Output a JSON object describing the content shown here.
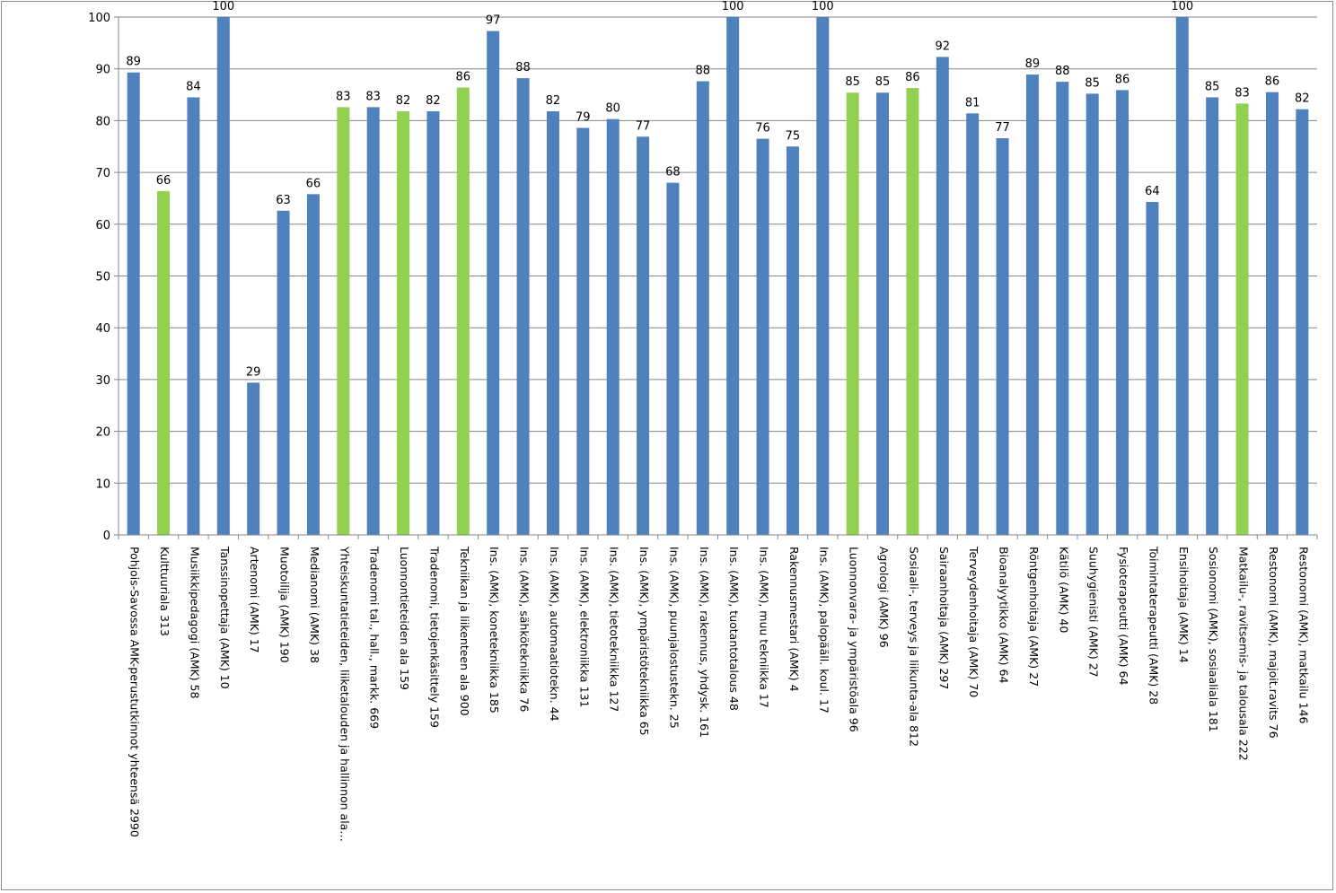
{
  "chart_data": {
    "type": "bar",
    "categories": [
      "Pohjois-Savossa AMK-perustutkinnot yhteensä 2990",
      "Kulttuuriala 313",
      "Musiikkipedagogi (AMK) 58",
      "Tanssinopettaja (AMK) 10",
      "Artenomi (AMK) 17",
      "Muotoilija (AMK) 190",
      "Medianomi (AMK) 38",
      "Yhteiskuntatieteiden, liiketalouden ja hallinnon ala…",
      "Tradenomi tal., hall., markk. 669",
      "Luonnontieteiden ala 159",
      "Tradenomi, tietojenkäsittely 159",
      "Tekniikan ja liikenteen ala 900",
      "Ins. (AMK), konetekniikka 185",
      "Ins. (AMK), sähkötekniikka 76",
      "Ins. (AMK), automaatiotekn. 44",
      "Ins. (AMK), elektroniikka 131",
      "Ins. (AMK), tietotekniikka 127",
      "Ins. (AMK), ympäristötekniikka 65",
      "Ins. (AMK), puunjalostustekn. 25",
      "Ins. (AMK), rakennus, yhdysk. 161",
      "Ins. (AMK), tuotantotalous 48",
      "Ins. (AMK), muu tekniikka 17",
      "Rakennusmestari (AMK) 4",
      "Ins. (AMK), palopääll. koul. 17",
      "Luonnonvara- ja ympäristöala 96",
      "Agrologi (AMK) 96",
      "Sosiaali-, terveys ja liikunta-ala 812",
      "Sairaanhoitaja (AMK) 297",
      "Terveydenhoitaja (AMK) 70",
      "Bioanalyytikko (AMK) 64",
      "Röntgenhoitaja (AMK) 27",
      "Kätilö (AMK) 40",
      "Suuhygienisti (AMK) 27",
      "Fysioterapeutti (AMK) 64",
      "Toimintaterapeutti (AMK) 28",
      "Ensihoitaja (AMK) 14",
      "Sosionomi (AMK), sosiaaliala 181",
      "Matkailu-, ravitsemis- ja talousala 222",
      "Restonomi (AMK), majoit.ravits 76",
      "Restonomi (AMK), matkailu 146"
    ],
    "values": [
      89.3,
      66.4,
      84.5,
      100,
      29.4,
      62.6,
      65.8,
      82.6,
      82.6,
      81.8,
      81.8,
      86.4,
      97.3,
      88.2,
      81.8,
      78.6,
      80.3,
      76.9,
      68.0,
      87.6,
      100,
      76.5,
      75.0,
      100,
      85.4,
      85.4,
      86.3,
      92.3,
      81.4,
      76.6,
      88.9,
      87.5,
      85.2,
      85.9,
      64.3,
      100,
      84.5,
      83.3,
      85.5,
      82.2
    ],
    "data_labels": [
      "89",
      "66",
      "84",
      "100",
      "29",
      "63",
      "66",
      "83",
      "83",
      "82",
      "82",
      "86",
      "97",
      "88",
      "82",
      "79",
      "80",
      "77",
      "68",
      "88",
      "100",
      "76",
      "75",
      "100",
      "85",
      "85",
      "86",
      "92",
      "81",
      "77",
      "89",
      "88",
      "85",
      "86",
      "64",
      "100",
      "85",
      "83",
      "86",
      "82"
    ],
    "group_flags": [
      false,
      true,
      false,
      false,
      false,
      false,
      false,
      true,
      false,
      true,
      false,
      true,
      false,
      false,
      false,
      false,
      false,
      false,
      false,
      false,
      false,
      false,
      false,
      false,
      true,
      false,
      true,
      false,
      false,
      false,
      false,
      false,
      false,
      false,
      false,
      false,
      false,
      true,
      false,
      false
    ],
    "ylim": [
      0,
      100
    ],
    "yticks": [
      "0",
      "10",
      "20",
      "30",
      "40",
      "50",
      "60",
      "70",
      "80",
      "90",
      "100"
    ],
    "grid": true,
    "legend": "none",
    "title": "",
    "xlabel": "",
    "ylabel": ""
  },
  "colors": {
    "bar": "#4f81bd",
    "group_bar": "#92d050",
    "grid": "#868686",
    "axis": "#868686"
  }
}
